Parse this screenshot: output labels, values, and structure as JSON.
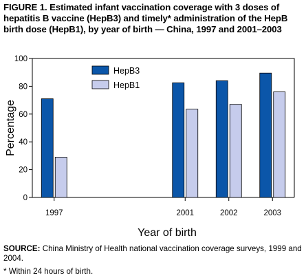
{
  "figure": {
    "title": "FIGURE 1. Estimated infant vaccination coverage with 3 doses of hepatitis B vaccine (HepB3) and timely* administration of the HepB birth dose (HepB1), by year of birth — China, 1997 and 2001–2003",
    "source_label": "SOURCE:",
    "source_text": "China Ministry of Health national vaccination coverage surveys, 1999 and 2004.",
    "footnote": "* Within 24 hours of birth."
  },
  "chart_data": {
    "type": "bar",
    "categories": [
      "1997",
      "",
      "",
      "2001",
      "2002",
      "2003"
    ],
    "series": [
      {
        "name": "HepB3",
        "values": [
          71,
          null,
          null,
          82.5,
          84,
          89.5
        ],
        "color": "#0b56a9"
      },
      {
        "name": "HepB1",
        "values": [
          29,
          null,
          null,
          63.5,
          67,
          76
        ],
        "color": "#c6ccec"
      }
    ],
    "xlabel": "Year of birth",
    "ylabel": "Percentage",
    "ylim": [
      0,
      100
    ],
    "yticks": [
      "0",
      "20",
      "40",
      "60",
      "80",
      "100"
    ],
    "grid": false,
    "legend": "top-left"
  }
}
